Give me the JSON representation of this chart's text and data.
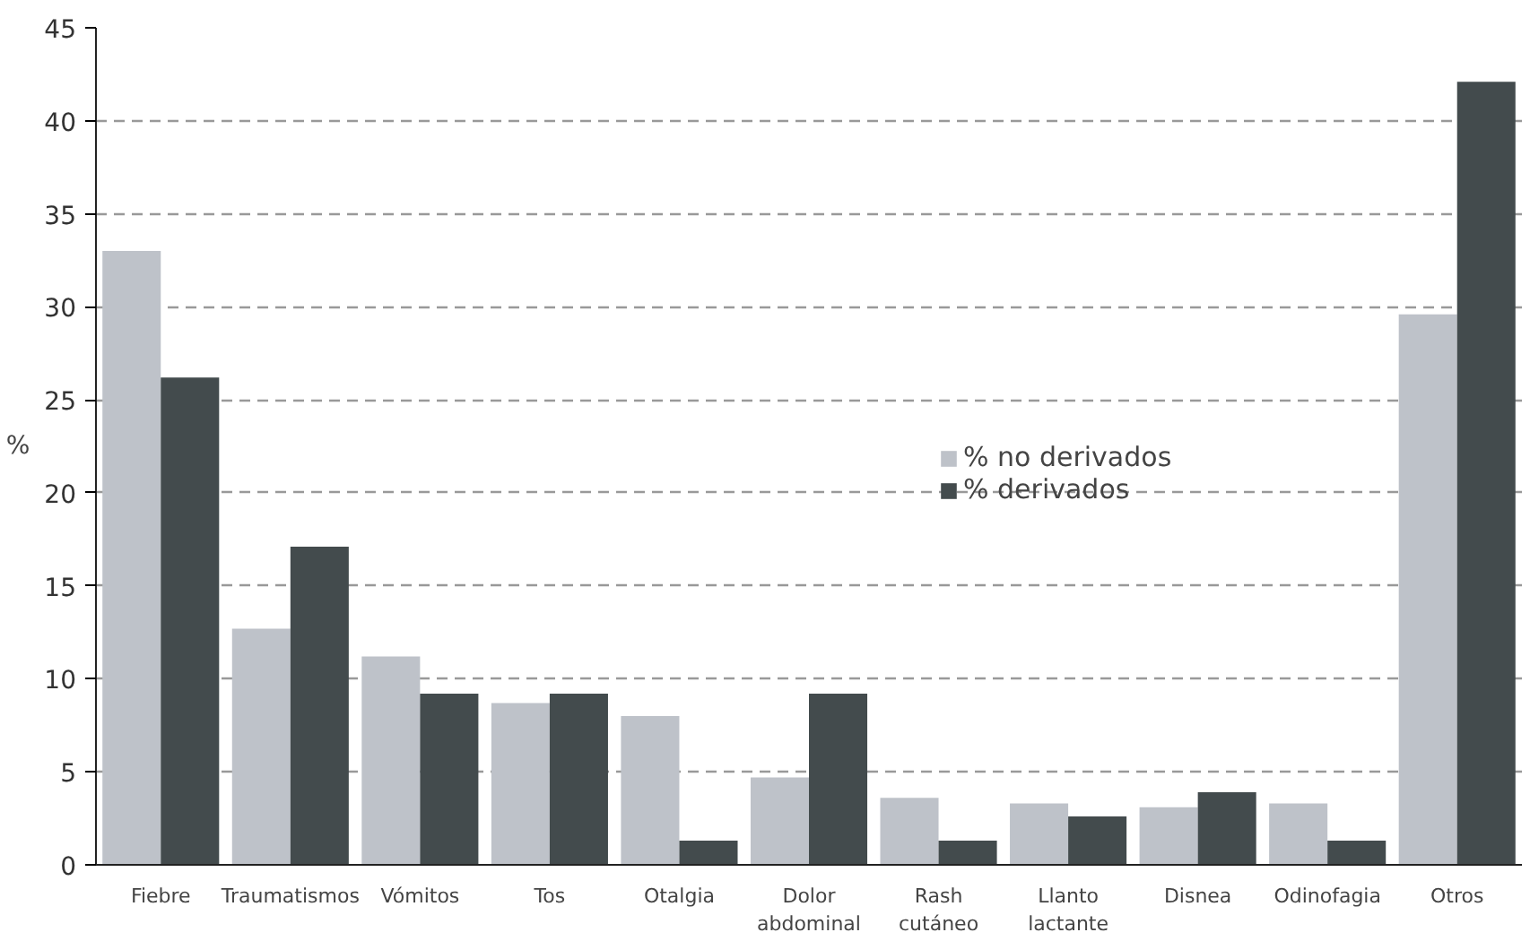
{
  "chart_data": {
    "type": "bar",
    "ylabel": "%",
    "categories": [
      "Fiebre",
      "Traumatismos",
      "Vómitos",
      "Tos",
      "Otalgia",
      "Dolor\nabdominal",
      "Rash\ncutáneo",
      "Llanto\nlactante",
      "Disnea",
      "Odinofagia",
      "Otros"
    ],
    "series": [
      {
        "name": "% no derivados",
        "color": "#bec2c9",
        "values": [
          33.0,
          12.7,
          11.2,
          8.7,
          8.0,
          4.7,
          3.6,
          3.3,
          3.1,
          3.3,
          29.6
        ]
      },
      {
        "name": "% derivados",
        "color": "#434b4d",
        "values": [
          26.2,
          17.1,
          9.2,
          9.2,
          1.3,
          9.2,
          1.3,
          2.6,
          3.9,
          1.3,
          42.1
        ]
      }
    ],
    "ylim": [
      0,
      45
    ],
    "yticks": [
      0,
      5,
      10,
      15,
      20,
      25,
      30,
      35,
      40,
      45
    ],
    "grid": "y",
    "legend": "right"
  }
}
